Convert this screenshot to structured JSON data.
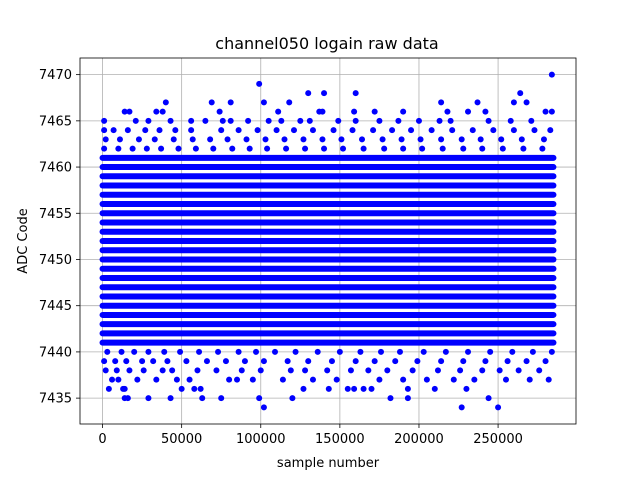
{
  "chart_data": {
    "type": "scatter",
    "title": "channel050 logain raw data",
    "xlabel": "sample number",
    "ylabel": "ADC Code",
    "xlim": [
      -14250,
      299250
    ],
    "ylim": [
      7432.2,
      7471.8
    ],
    "grid": true,
    "marker_color": "#0000ff",
    "x_ticks": [
      0,
      50000,
      100000,
      150000,
      200000,
      250000
    ],
    "x_tick_labels": [
      "0",
      "50000",
      "100000",
      "150000",
      "200000",
      "250000"
    ],
    "y_ticks": [
      7435,
      7440,
      7445,
      7450,
      7455,
      7460,
      7465,
      7470
    ],
    "y_tick_labels": [
      "7435",
      "7440",
      "7445",
      "7450",
      "7455",
      "7460",
      "7465",
      "7470"
    ],
    "x_range": [
      0,
      285000
    ],
    "dense_band": {
      "y_min": 7441,
      "y_max": 7461,
      "x_min": 0,
      "x_max": 285000
    },
    "sparse_rows": [
      {
        "y": 7436,
        "x": [
          4000,
          13000,
          14000,
          50000,
          58000,
          62000,
          127000,
          143000,
          155000,
          159000,
          165000,
          170000,
          193000,
          210000,
          230000
        ]
      },
      {
        "y": 7437,
        "x": [
          6000,
          10000,
          22000,
          34000,
          47000,
          55000,
          80000,
          85000,
          95000,
          114000,
          133000,
          148000,
          175000,
          190000,
          205000,
          222000,
          235000,
          255000,
          270000,
          282000
        ]
      },
      {
        "y": 7438,
        "x": [
          2000,
          9000,
          17000,
          26000,
          38000,
          44000,
          60000,
          72000,
          88000,
          100000,
          119000,
          128000,
          142000,
          157000,
          168000,
          180000,
          196000,
          212000,
          226000,
          240000,
          251000,
          263000,
          276000
        ]
      },
      {
        "y": 7439,
        "x": [
          1000,
          8000,
          15000,
          25000,
          32000,
          41000,
          53000,
          66000,
          78000,
          90000,
          102000,
          117000,
          130000,
          145000,
          160000,
          172000,
          185000,
          199000,
          214000,
          228000,
          242000,
          256000,
          268000,
          280000
        ]
      },
      {
        "y": 7440,
        "x": [
          3000,
          12000,
          20000,
          29000,
          39000,
          49000,
          61000,
          73000,
          86000,
          97000,
          109000,
          122000,
          136000,
          150000,
          163000,
          176000,
          188000,
          203000,
          217000,
          231000,
          245000,
          259000,
          272000,
          284000
        ]
      },
      {
        "y": 7462,
        "x": [
          1000,
          10000,
          19000,
          28000,
          37000,
          48000,
          59000,
          70000,
          82000,
          93000,
          104000,
          116000,
          128000,
          140000,
          152000,
          165000,
          178000,
          190000,
          202000,
          215000,
          228000,
          240000,
          253000,
          266000,
          278000
        ]
      },
      {
        "y": 7463,
        "x": [
          2000,
          11000,
          23000,
          33000,
          45000,
          57000,
          68000,
          79000,
          91000,
          103000,
          115000,
          127000,
          139000,
          151000,
          164000,
          177000,
          189000,
          201000,
          214000,
          227000,
          239000,
          252000,
          265000,
          279000
        ]
      },
      {
        "y": 7464,
        "x": [
          1000,
          7000,
          16000,
          27000,
          36000,
          46000,
          56000,
          75000,
          86000,
          98000,
          110000,
          121000,
          133000,
          146000,
          158000,
          171000,
          183000,
          195000,
          208000,
          221000,
          234000,
          247000,
          260000,
          273000,
          283000
        ]
      },
      {
        "y": 7465,
        "x": [
          1000,
          21000,
          29000,
          43000,
          56000,
          65000,
          76000,
          81000,
          92000,
          105000,
          113000,
          125000,
          131000,
          149000,
          160000,
          175000,
          187000,
          200000,
          213000,
          220000,
          244000,
          258000,
          271000
        ]
      },
      {
        "y": 7466,
        "x": [
          14000,
          17000,
          34000,
          38000,
          74000,
          111000,
          137000,
          139000,
          159000,
          172000,
          190000,
          218000,
          231000,
          242000,
          280000,
          284000
        ]
      },
      {
        "y": 7467,
        "x": [
          40000,
          69000,
          81000,
          102000,
          118000,
          214000,
          237000,
          260000,
          268000
        ]
      },
      {
        "y": 7468,
        "x": [
          130000,
          140000,
          160000,
          264000
        ]
      }
    ],
    "outliers": [
      {
        "x": 99000,
        "y": 7469
      },
      {
        "x": 284000,
        "y": 7470
      },
      {
        "x": 102000,
        "y": 7434
      },
      {
        "x": 227000,
        "y": 7434
      },
      {
        "x": 250000,
        "y": 7434
      },
      {
        "x": 14000,
        "y": 7435
      },
      {
        "x": 16000,
        "y": 7435
      },
      {
        "x": 29000,
        "y": 7435
      },
      {
        "x": 43000,
        "y": 7435
      },
      {
        "x": 63000,
        "y": 7435
      },
      {
        "x": 75000,
        "y": 7435
      },
      {
        "x": 99000,
        "y": 7435
      },
      {
        "x": 120000,
        "y": 7435
      },
      {
        "x": 182000,
        "y": 7435
      },
      {
        "x": 193000,
        "y": 7435
      },
      {
        "x": 244000,
        "y": 7435
      }
    ]
  }
}
